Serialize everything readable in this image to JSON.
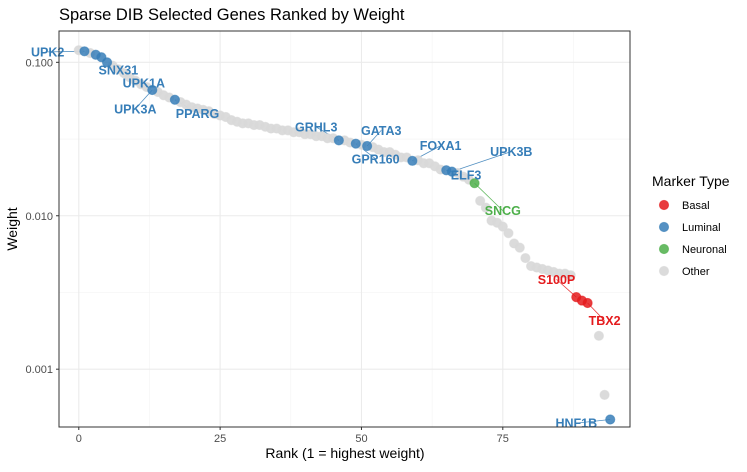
{
  "chart_data": {
    "type": "scatter",
    "title": "Sparse DIB Selected Genes Ranked by Weight",
    "xlabel": "Rank (1 = highest weight)",
    "ylabel": "Weight",
    "xlim": [
      -3.5,
      97.5
    ],
    "ylim": [
      0.00042,
      0.16
    ],
    "y_scale": "log10",
    "x_ticks": [
      {
        "value": 0,
        "label": "0"
      },
      {
        "value": 25,
        "label": "25"
      },
      {
        "value": 50,
        "label": "50"
      },
      {
        "value": 75,
        "label": "75"
      }
    ],
    "y_ticks": [
      {
        "value": 0.1,
        "label": "0.100"
      },
      {
        "value": 0.01,
        "label": "0.010"
      },
      {
        "value": 0.001,
        "label": "0.001"
      }
    ],
    "grid": true,
    "legend": {
      "title": "Marker Type",
      "position": "right",
      "entries": [
        {
          "key": "Basal",
          "label": "Basal"
        },
        {
          "key": "Luminal",
          "label": "Luminal"
        },
        {
          "key": "Neuronal",
          "label": "Neuronal"
        },
        {
          "key": "Other",
          "label": "Other"
        }
      ]
    },
    "colors": {
      "Basal": "#e41a1c",
      "Luminal": "#377eb8",
      "Neuronal": "#4daf4a",
      "Other": "#d9d9d9"
    },
    "series": [
      {
        "name": "Basal",
        "points": [
          [
            88,
            0.00295
          ],
          [
            89,
            0.0028
          ],
          [
            90,
            0.0027
          ]
        ]
      },
      {
        "name": "Luminal",
        "points": [
          [
            1,
            0.118
          ],
          [
            3,
            0.112
          ],
          [
            4,
            0.108
          ],
          [
            5,
            0.1
          ],
          [
            13,
            0.066
          ],
          [
            17,
            0.057
          ],
          [
            46,
            0.031
          ],
          [
            49,
            0.0295
          ],
          [
            51,
            0.0285
          ],
          [
            59,
            0.0228
          ],
          [
            65,
            0.0198
          ],
          [
            66,
            0.0194
          ],
          [
            94,
            0.00047
          ]
        ]
      },
      {
        "name": "Neuronal",
        "points": [
          [
            70,
            0.0163
          ]
        ]
      },
      {
        "name": "Other",
        "points": [
          [
            0,
            0.12
          ],
          [
            2,
            0.115
          ],
          [
            6,
            0.095
          ],
          [
            7,
            0.09
          ],
          [
            8,
            0.085
          ],
          [
            9,
            0.08
          ],
          [
            10,
            0.076
          ],
          [
            11,
            0.072
          ],
          [
            12,
            0.069
          ],
          [
            14,
            0.064
          ],
          [
            15,
            0.061
          ],
          [
            16,
            0.059
          ],
          [
            18,
            0.055
          ],
          [
            19,
            0.053
          ],
          [
            20,
            0.051
          ],
          [
            21,
            0.05
          ],
          [
            22,
            0.049
          ],
          [
            23,
            0.048
          ],
          [
            24,
            0.046
          ],
          [
            25,
            0.045
          ],
          [
            26,
            0.044
          ],
          [
            27,
            0.042
          ],
          [
            28,
            0.041
          ],
          [
            29,
            0.04
          ],
          [
            30,
            0.04
          ],
          [
            31,
            0.039
          ],
          [
            32,
            0.039
          ],
          [
            33,
            0.038
          ],
          [
            34,
            0.037
          ],
          [
            35,
            0.037
          ],
          [
            36,
            0.036
          ],
          [
            37,
            0.036
          ],
          [
            38,
            0.035
          ],
          [
            39,
            0.035
          ],
          [
            40,
            0.034
          ],
          [
            41,
            0.034
          ],
          [
            42,
            0.033
          ],
          [
            43,
            0.033
          ],
          [
            44,
            0.032
          ],
          [
            45,
            0.032
          ],
          [
            47,
            0.031
          ],
          [
            48,
            0.03
          ],
          [
            50,
            0.029
          ],
          [
            52,
            0.028
          ],
          [
            53,
            0.027
          ],
          [
            54,
            0.026
          ],
          [
            55,
            0.026
          ],
          [
            56,
            0.025
          ],
          [
            57,
            0.024
          ],
          [
            58,
            0.024
          ],
          [
            60,
            0.023
          ],
          [
            61,
            0.022
          ],
          [
            62,
            0.022
          ],
          [
            63,
            0.021
          ],
          [
            64,
            0.02
          ],
          [
            67,
            0.019
          ],
          [
            68,
            0.018
          ],
          [
            69,
            0.0172
          ],
          [
            71,
            0.0125
          ],
          [
            72,
            0.0113
          ],
          [
            73,
            0.0093
          ],
          [
            74,
            0.009
          ],
          [
            75,
            0.0085
          ],
          [
            76,
            0.0077
          ],
          [
            77,
            0.0066
          ],
          [
            78,
            0.0062
          ],
          [
            79,
            0.0053
          ],
          [
            80,
            0.0047
          ],
          [
            81,
            0.0046
          ],
          [
            82,
            0.0045
          ],
          [
            83,
            0.0044
          ],
          [
            84,
            0.0043
          ],
          [
            85,
            0.0042
          ],
          [
            86,
            0.0042
          ],
          [
            87,
            0.0041
          ],
          [
            92,
            0.00165
          ],
          [
            93,
            0.00068
          ]
        ]
      }
    ],
    "annotations": [
      {
        "gene": "UPK2",
        "type": "Luminal",
        "x": 1,
        "y": 0.118,
        "lx": -5.5,
        "ly": 0.117
      },
      {
        "gene": "SNX31",
        "type": "Luminal",
        "x": 5,
        "y": 0.1,
        "lx": 7,
        "ly": 0.089
      },
      {
        "gene": "UPK1A",
        "type": "Luminal",
        "x": 13,
        "y": 0.066,
        "lx": 11.5,
        "ly": 0.0735
      },
      {
        "gene": "UPK3A",
        "type": "Luminal",
        "x": 13,
        "y": 0.066,
        "lx": 10,
        "ly": 0.0498
      },
      {
        "gene": "PPARG",
        "type": "Luminal",
        "x": 17,
        "y": 0.057,
        "lx": 21,
        "ly": 0.0465
      },
      {
        "gene": "GRHL3",
        "type": "Luminal",
        "x": 46,
        "y": 0.031,
        "lx": 42,
        "ly": 0.0379
      },
      {
        "gene": "GATA3",
        "type": "Luminal",
        "x": 51,
        "y": 0.0285,
        "lx": 53.5,
        "ly": 0.036
      },
      {
        "gene": "GPR160",
        "type": "Luminal",
        "x": 49,
        "y": 0.0295,
        "lx": 52.5,
        "ly": 0.0235
      },
      {
        "gene": "FOXA1",
        "type": "Luminal",
        "x": 59,
        "y": 0.0228,
        "lx": 64,
        "ly": 0.0286
      },
      {
        "gene": "UPK3B",
        "type": "Luminal",
        "x": 66,
        "y": 0.0194,
        "lx": 76.5,
        "ly": 0.0262
      },
      {
        "gene": "ELF3",
        "type": "Luminal",
        "x": 65,
        "y": 0.0198,
        "lx": 68.5,
        "ly": 0.0184
      },
      {
        "gene": "SNCG",
        "type": "Neuronal",
        "x": 70,
        "y": 0.0163,
        "lx": 75,
        "ly": 0.0108
      },
      {
        "gene": "S100P",
        "type": "Basal",
        "x": 88,
        "y": 0.00295,
        "lx": 84.5,
        "ly": 0.00385
      },
      {
        "gene": "TBX2",
        "type": "Basal",
        "x": 90,
        "y": 0.0027,
        "lx": 93,
        "ly": 0.00207
      },
      {
        "gene": "HNF1B",
        "type": "Luminal",
        "x": 94,
        "y": 0.00047,
        "lx": 88,
        "ly": 0.000445
      }
    ]
  }
}
